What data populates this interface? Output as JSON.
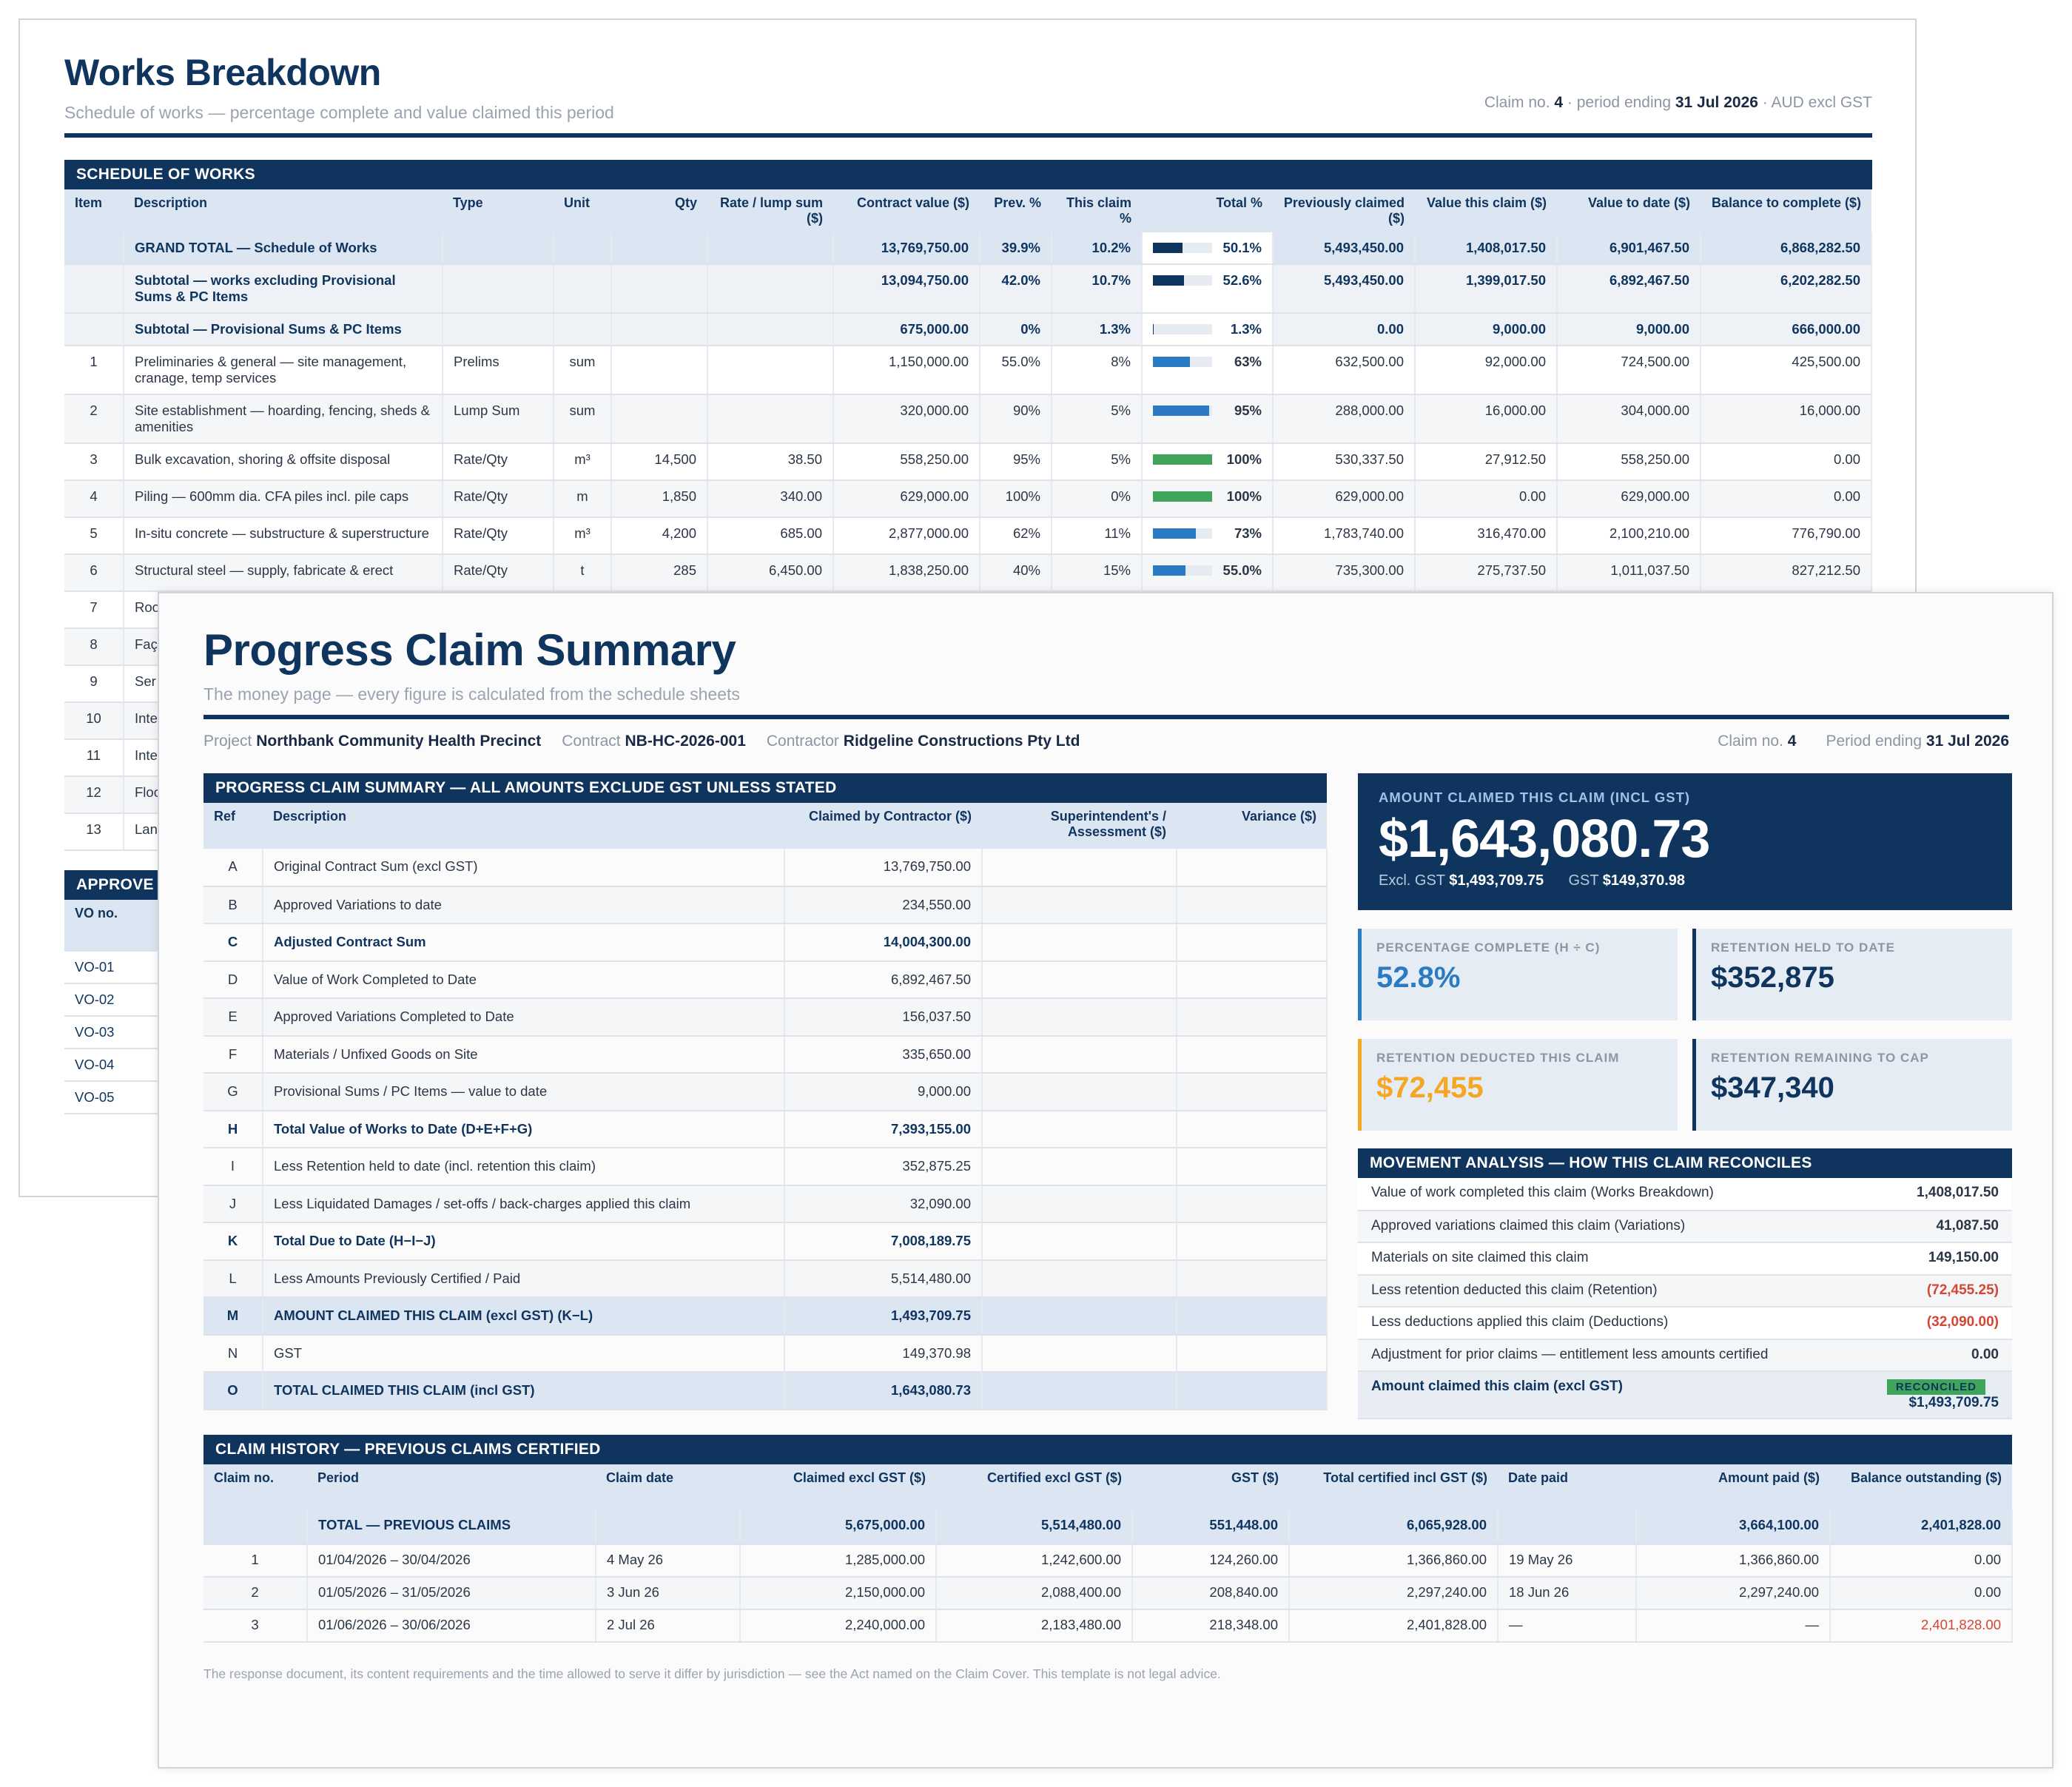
{
  "back": {
    "title": "Works Breakdown",
    "subtitle": "Schedule of works — percentage complete and value claimed this period",
    "meta": {
      "claim_label": "Claim no.",
      "claim_no": "4",
      "period_label": "· period ending",
      "period": "31 Jul 2026",
      "currency": "· AUD excl GST"
    },
    "section": "SCHEDULE OF WORKS",
    "headers": [
      "Item",
      "Description",
      "Type",
      "Unit",
      "Qty",
      "Rate / lump sum ($)",
      "Contract value ($)",
      "Prev. %",
      "This claim %",
      "Total %",
      "Previously claimed ($)",
      "Value this claim ($)",
      "Value to date ($)",
      "Balance to complete ($)"
    ],
    "totals": [
      {
        "desc": "GRAND TOTAL — Schedule of Works",
        "contract": "13,769,750.00",
        "prev": "39.9%",
        "this": "10.2%",
        "pct": 50.1,
        "total": "50.1%",
        "prevclaimed": "5,493,450.00",
        "valthis": "1,408,017.50",
        "todate": "6,901,467.50",
        "balance": "6,868,282.50"
      },
      {
        "desc": "Subtotal — works excluding Provisional Sums & PC Items",
        "contract": "13,094,750.00",
        "prev": "42.0%",
        "this": "10.7%",
        "pct": 52.6,
        "total": "52.6%",
        "prevclaimed": "5,493,450.00",
        "valthis": "1,399,017.50",
        "todate": "6,892,467.50",
        "balance": "6,202,282.50"
      },
      {
        "desc": "Subtotal — Provisional Sums & PC Items",
        "contract": "675,000.00",
        "prev": "0%",
        "this": "1.3%",
        "pct": 1.3,
        "total": "1.3%",
        "prevclaimed": "0.00",
        "valthis": "9,000.00",
        "todate": "9,000.00",
        "balance": "666,000.00"
      }
    ],
    "rows": [
      {
        "item": "1",
        "desc": "Preliminaries & general — site management, cranage, temp services",
        "type": "Prelims",
        "unit": "sum",
        "qty": "",
        "rate": "",
        "contract": "1,150,000.00",
        "prev": "55.0%",
        "this": "8%",
        "pct": 63,
        "total": "63%",
        "prevclaimed": "632,500.00",
        "valthis": "92,000.00",
        "todate": "724,500.00",
        "balance": "425,500.00"
      },
      {
        "item": "2",
        "desc": "Site establishment — hoarding, fencing, sheds & amenities",
        "type": "Lump Sum",
        "unit": "sum",
        "qty": "",
        "rate": "",
        "contract": "320,000.00",
        "prev": "90%",
        "this": "5%",
        "pct": 95,
        "total": "95%",
        "prevclaimed": "288,000.00",
        "valthis": "16,000.00",
        "todate": "304,000.00",
        "balance": "16,000.00"
      },
      {
        "item": "3",
        "desc": "Bulk excavation, shoring & offsite disposal",
        "type": "Rate/Qty",
        "unit": "m³",
        "qty": "14,500",
        "rate": "38.50",
        "contract": "558,250.00",
        "prev": "95%",
        "this": "5%",
        "pct": 100,
        "total": "100%",
        "prevclaimed": "530,337.50",
        "valthis": "27,912.50",
        "todate": "558,250.00",
        "balance": "0.00"
      },
      {
        "item": "4",
        "desc": "Piling — 600mm dia. CFA piles incl. pile caps",
        "type": "Rate/Qty",
        "unit": "m",
        "qty": "1,850",
        "rate": "340.00",
        "contract": "629,000.00",
        "prev": "100%",
        "this": "0%",
        "pct": 100,
        "total": "100%",
        "prevclaimed": "629,000.00",
        "valthis": "0.00",
        "todate": "629,000.00",
        "balance": "0.00"
      },
      {
        "item": "5",
        "desc": "In-situ concrete — substructure & superstructure",
        "type": "Rate/Qty",
        "unit": "m³",
        "qty": "4,200",
        "rate": "685.00",
        "contract": "2,877,000.00",
        "prev": "62%",
        "this": "11%",
        "pct": 73,
        "total": "73%",
        "prevclaimed": "1,783,740.00",
        "valthis": "316,470.00",
        "todate": "2,100,210.00",
        "balance": "776,790.00"
      },
      {
        "item": "6",
        "desc": "Structural steel — supply, fabricate & erect",
        "type": "Rate/Qty",
        "unit": "t",
        "qty": "285",
        "rate": "6,450.00",
        "contract": "1,838,250.00",
        "prev": "40%",
        "this": "15%",
        "pct": 55,
        "total": "55.0%",
        "prevclaimed": "735,300.00",
        "valthis": "275,737.50",
        "todate": "1,011,037.50",
        "balance": "827,212.50"
      },
      {
        "item": "7",
        "desc": "Roo rain"
      },
      {
        "item": "8",
        "desc": "Faç me"
      },
      {
        "item": "9",
        "desc": "Ser hyc"
      },
      {
        "item": "10",
        "desc": "Inte & p"
      },
      {
        "item": "11",
        "desc": "Inte fixe"
      },
      {
        "item": "12",
        "desc": "Floo"
      },
      {
        "item": "13",
        "desc": "Lan"
      }
    ],
    "vo_section": "APPROVE",
    "vo_header": "VO no.",
    "vo_rows": [
      "VO-01",
      "VO-02",
      "VO-03",
      "VO-04",
      "VO-05"
    ]
  },
  "front": {
    "title": "Progress Claim Summary",
    "subtitle": "The money page — every figure is calculated from the schedule sheets",
    "project_label": "Project",
    "project": "Northbank Community Health Precinct",
    "contract_label": "Contract",
    "contract": "NB-HC-2026-001",
    "contractor_label": "Contractor",
    "contractor": "Ridgeline Constructions Pty Ltd",
    "claim_label": "Claim no.",
    "claim_no": "4",
    "period_label": "Period ending",
    "period": "31 Jul 2026",
    "summary": {
      "section": "PROGRESS CLAIM SUMMARY — ALL AMOUNTS EXCLUDE GST UNLESS STATED",
      "headers": [
        "Ref",
        "Description",
        "Claimed by Contractor ($)",
        "Superintendent's / Assessment ($)",
        "Variance ($)"
      ],
      "rows": [
        {
          "ref": "A",
          "desc": "Original Contract Sum (excl GST)",
          "val": "13,769,750.00",
          "style": ""
        },
        {
          "ref": "B",
          "desc": "Approved Variations to date",
          "val": "234,550.00",
          "style": "alt"
        },
        {
          "ref": "C",
          "desc": "Adjusted Contract Sum",
          "val": "14,004,300.00",
          "style": "em"
        },
        {
          "ref": "D",
          "desc": "Value of Work Completed to Date",
          "val": "6,892,467.50",
          "style": ""
        },
        {
          "ref": "E",
          "desc": "Approved Variations Completed to Date",
          "val": "156,037.50",
          "style": "alt"
        },
        {
          "ref": "F",
          "desc": "Materials / Unfixed Goods on Site",
          "val": "335,650.00",
          "style": ""
        },
        {
          "ref": "G",
          "desc": "Provisional Sums / PC Items — value to date",
          "val": "9,000.00",
          "style": "alt"
        },
        {
          "ref": "H",
          "desc": "Total Value of Works to Date (D+E+F+G)",
          "val": "7,393,155.00",
          "style": "em"
        },
        {
          "ref": "I",
          "desc": "Less Retention held to date (incl. retention this claim)",
          "val": "352,875.25",
          "style": ""
        },
        {
          "ref": "J",
          "desc": "Less Liquidated Damages / set-offs / back-charges applied this claim",
          "val": "32,090.00",
          "style": "alt"
        },
        {
          "ref": "K",
          "desc": "Total Due to Date (H−I−J)",
          "val": "7,008,189.75",
          "style": "em"
        },
        {
          "ref": "L",
          "desc": "Less Amounts Previously Certified / Paid",
          "val": "5,514,480.00",
          "style": "alt"
        },
        {
          "ref": "M",
          "desc": "AMOUNT CLAIMED THIS CLAIM (excl GST) (K−L)",
          "val": "1,493,709.75",
          "style": "hl"
        },
        {
          "ref": "N",
          "desc": "GST",
          "val": "149,370.98",
          "style": ""
        },
        {
          "ref": "O",
          "desc": "TOTAL CLAIMED THIS CLAIM (incl GST)",
          "val": "1,643,080.73",
          "style": "hl"
        }
      ]
    },
    "big": {
      "label": "AMOUNT CLAIMED THIS CLAIM (INCL GST)",
      "amount": "$1,643,080.73",
      "excl_label": "Excl. GST",
      "excl": "$1,493,709.75",
      "gst_label": "GST",
      "gst": "$149,370.98"
    },
    "kpis": [
      {
        "label": "PERCENTAGE COMPLETE (H ÷ C)",
        "value": "52.8%",
        "style": "blue"
      },
      {
        "label": "RETENTION HELD TO DATE",
        "value": "$352,875",
        "style": ""
      },
      {
        "label": "RETENTION DEDUCTED THIS CLAIM",
        "value": "$72,455",
        "style": "orange"
      },
      {
        "label": "RETENTION REMAINING TO CAP",
        "value": "$347,340",
        "style": ""
      }
    ],
    "movement": {
      "section": "MOVEMENT ANALYSIS — HOW THIS CLAIM RECONCILES",
      "rows": [
        {
          "label": "Value of work completed this claim (Works Breakdown)",
          "val": "1,408,017.50",
          "neg": false
        },
        {
          "label": "Approved variations claimed this claim (Variations)",
          "val": "41,087.50",
          "neg": false
        },
        {
          "label": "Materials on site claimed this claim",
          "val": "149,150.00",
          "neg": false
        },
        {
          "label": "Less retention deducted this claim (Retention)",
          "val": "(72,455.25)",
          "neg": true
        },
        {
          "label": "Less deductions applied this claim (Deductions)",
          "val": "(32,090.00)",
          "neg": true
        },
        {
          "label": "Adjustment for prior claims — entitlement less amounts certified",
          "val": "0.00",
          "neg": false
        }
      ],
      "final_label": "Amount claimed this claim (excl GST)",
      "badge": "RECONCILED",
      "final_val": "$1,493,709.75"
    },
    "history": {
      "section": "CLAIM HISTORY — PREVIOUS CLAIMS CERTIFIED",
      "headers": [
        "Claim no.",
        "Period",
        "Claim date",
        "Claimed excl GST ($)",
        "Certified excl GST ($)",
        "GST ($)",
        "Total certified incl GST ($)",
        "Date paid",
        "Amount paid ($)",
        "Balance outstanding ($)"
      ],
      "total": {
        "label": "TOTAL — PREVIOUS CLAIMS",
        "claimed": "5,675,000.00",
        "certified": "5,514,480.00",
        "gst": "551,448.00",
        "total": "6,065,928.00",
        "paid": "3,664,100.00",
        "balance": "2,401,828.00"
      },
      "rows": [
        {
          "no": "1",
          "period": "01/04/2026 – 30/04/2026",
          "date": "4 May 26",
          "claimed": "1,285,000.00",
          "certified": "1,242,600.00",
          "gst": "124,260.00",
          "total": "1,366,860.00",
          "datepaid": "19 May 26",
          "paid": "1,366,860.00",
          "balance": "0.00",
          "neg": false
        },
        {
          "no": "2",
          "period": "01/05/2026 – 31/05/2026",
          "date": "3 Jun 26",
          "claimed": "2,150,000.00",
          "certified": "2,088,400.00",
          "gst": "208,840.00",
          "total": "2,297,240.00",
          "datepaid": "18 Jun 26",
          "paid": "2,297,240.00",
          "balance": "0.00",
          "neg": false
        },
        {
          "no": "3",
          "period": "01/06/2026 – 30/06/2026",
          "date": "2 Jul 26",
          "claimed": "2,240,000.00",
          "certified": "2,183,480.00",
          "gst": "218,348.00",
          "total": "2,401,828.00",
          "datepaid": "—",
          "paid": "—",
          "balance": "2,401,828.00",
          "neg": true
        }
      ]
    },
    "footnote": "The response document, its content requirements and the time allowed to serve it differ by jurisdiction — see the Act named on the Claim Cover. This template is not legal advice."
  },
  "colors": {
    "navy": "#0f355f",
    "bar_blue": "#2b7bc4",
    "bar_green": "#3ea55a",
    "orange": "#f5a623",
    "negative": "#d64532"
  }
}
